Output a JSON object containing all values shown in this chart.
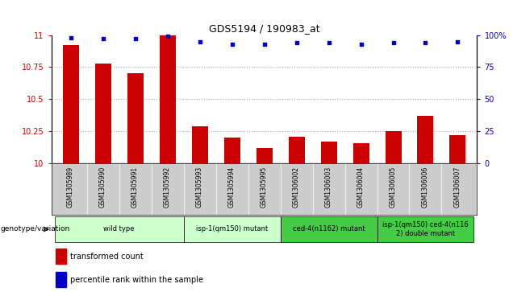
{
  "title": "GDS5194 / 190983_at",
  "samples": [
    "GSM1305989",
    "GSM1305990",
    "GSM1305991",
    "GSM1305992",
    "GSM1305993",
    "GSM1305994",
    "GSM1305995",
    "GSM1306002",
    "GSM1306003",
    "GSM1306004",
    "GSM1306005",
    "GSM1306006",
    "GSM1306007"
  ],
  "bar_values": [
    10.92,
    10.78,
    10.7,
    11.0,
    10.29,
    10.2,
    10.12,
    10.21,
    10.17,
    10.16,
    10.25,
    10.37,
    10.22
  ],
  "dot_values": [
    98,
    97,
    97,
    99,
    95,
    93,
    93,
    94,
    94,
    93,
    94,
    94,
    95
  ],
  "bar_color": "#cc0000",
  "dot_color": "#0000cc",
  "ylim_left": [
    10,
    11
  ],
  "ylim_right": [
    0,
    100
  ],
  "yticks_left": [
    10,
    10.25,
    10.5,
    10.75,
    11
  ],
  "yticks_right": [
    0,
    25,
    50,
    75,
    100
  ],
  "ytick_labels_left": [
    "10",
    "10.25",
    "10.5",
    "10.75",
    "11"
  ],
  "ytick_labels_right": [
    "0",
    "25",
    "50",
    "75",
    "100%"
  ],
  "group_data": [
    {
      "start": 0,
      "end": 3,
      "label": "wild type",
      "color": "#ccffcc"
    },
    {
      "start": 4,
      "end": 6,
      "label": "isp-1(qm150) mutant",
      "color": "#ccffcc"
    },
    {
      "start": 7,
      "end": 9,
      "label": "ced-4(n1162) mutant",
      "color": "#44cc44"
    },
    {
      "start": 10,
      "end": 12,
      "label": "isp-1(qm150) ced-4(n116\n2) double mutant",
      "color": "#44cc44"
    }
  ],
  "legend_bar_label": "transformed count",
  "legend_dot_label": "percentile rank within the sample",
  "grid_color": "#aaaaaa",
  "chart_bg": "#ffffff",
  "sample_bg": "#cccccc"
}
